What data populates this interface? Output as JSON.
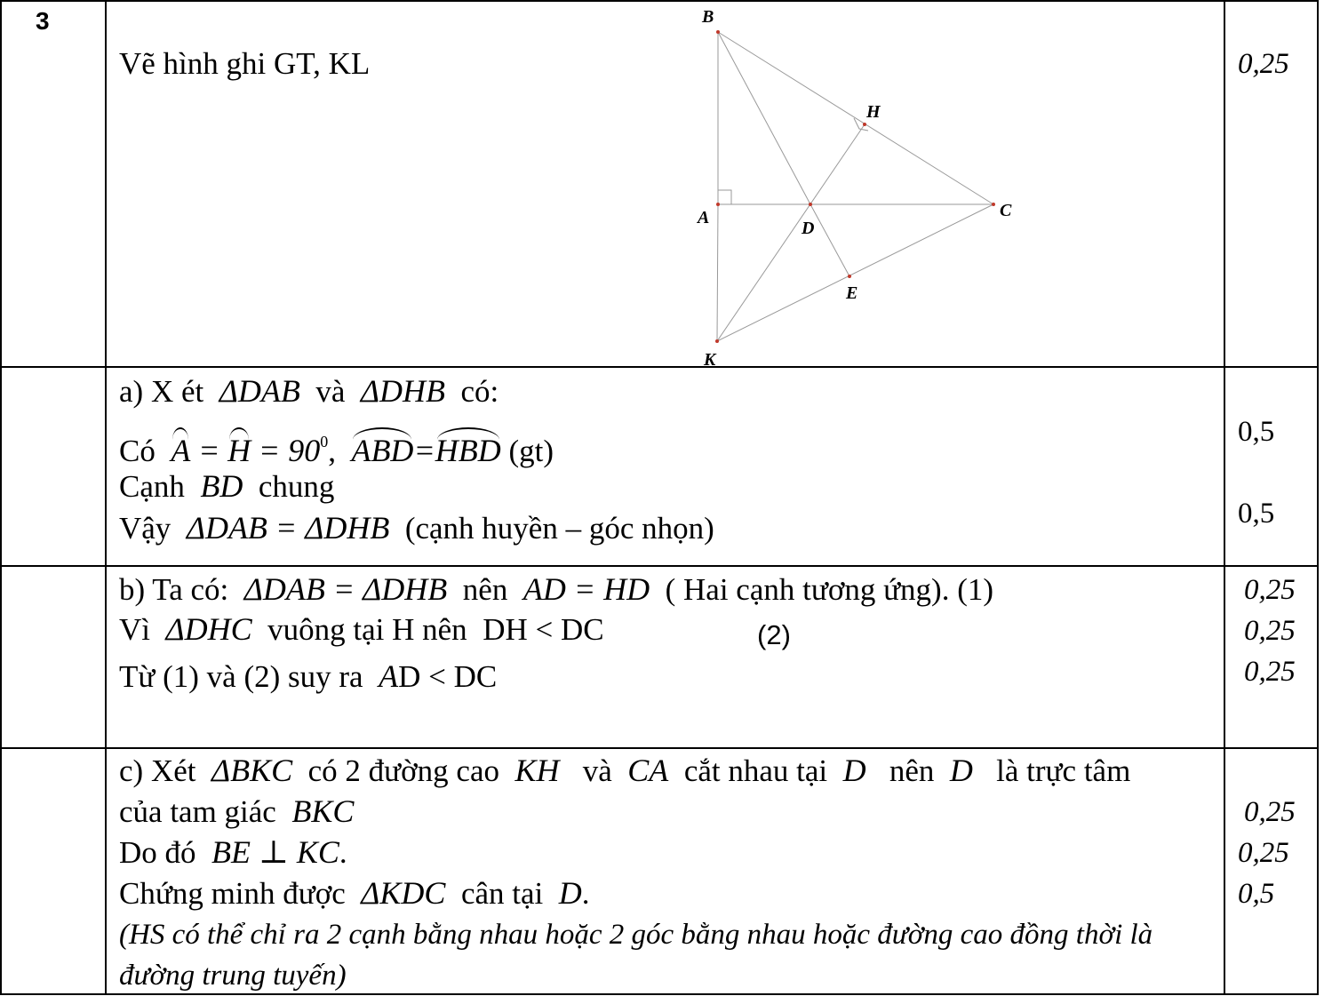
{
  "problem_number": "3",
  "row1": {
    "text": "Vẽ hình ghi GT, KL",
    "score": "0,25",
    "figure": {
      "labels": {
        "B": "B",
        "H": "H",
        "A": "A",
        "D": "D",
        "C": "C",
        "E": "E",
        "K": "K"
      }
    }
  },
  "row2": {
    "line1_prefix": "a) X ét",
    "line1_t1": "ΔDAB",
    "line1_and": "và",
    "line1_t2": "ΔDHB",
    "line1_suffix": "có:",
    "line2_prefix": "Có",
    "line2_A": "A",
    "line2_H": "H",
    "line2_eq": "= 90",
    "line2_deg": "0",
    "line2_comma": ",",
    "line2_ABD": "ABD",
    "line2_HBD": "HBD",
    "line2_gt": "(gt)",
    "line3_prefix": "Cạnh",
    "line3_BD": "BD",
    "line3_suffix": "chung",
    "line4_prefix": "Vậy",
    "line4_expr": "ΔDAB = ΔDHB",
    "line4_suffix": "(cạnh huyền – góc nhọn)",
    "score1": "0,5",
    "score2": "0,5"
  },
  "row3": {
    "line1_prefix": "b) Ta có:",
    "line1_expr": "ΔDAB = ΔDHB",
    "line1_mid": "nên",
    "line1_expr2": "AD = HD",
    "line1_suffix": "( Hai cạnh tương ứng).  (1)",
    "line2_prefix": "Vì",
    "line2_expr": "ΔDHC",
    "line2_mid": "vuông tại H nên",
    "line2_expr2": "DH < DC",
    "line2_tag": "(2)",
    "line3_prefix": "Từ (1) và (2) suy ra",
    "line3_A": "A",
    "line3_expr": "D < DC",
    "score1": "0,25",
    "score2": "0,25",
    "score3": "0,25"
  },
  "row4": {
    "line1_prefix": "c) Xét",
    "line1_expr": "ΔBKC",
    "line1_mid1": "có 2 đường cao",
    "line1_KH": "KH",
    "line1_and": "và",
    "line1_CA": "CA",
    "line1_mid2": "cắt nhau tại",
    "line1_D1": "D",
    "line1_mid3": "nên",
    "line1_D2": "D",
    "line1_suffix": "là trực tâm",
    "line2_prefix": "của tam giác",
    "line2_BKC": "BKC",
    "line3_prefix": "Do đó",
    "line3_expr": "BE ⊥ KC",
    "line3_dot": ".",
    "line4_prefix": "Chứng minh được",
    "line4_expr": "ΔKDC",
    "line4_mid": "cân tại",
    "line4_D": "D",
    "line4_dot": ".",
    "note1": "(HS có thể chỉ ra 2 cạnh bằng nhau hoặc 2 góc bằng nhau hoặc đường cao đồng thời là",
    "note2": "đường trung tuyến)",
    "score1": "0,25",
    "score2": "0,25",
    "score3": "0,5"
  }
}
